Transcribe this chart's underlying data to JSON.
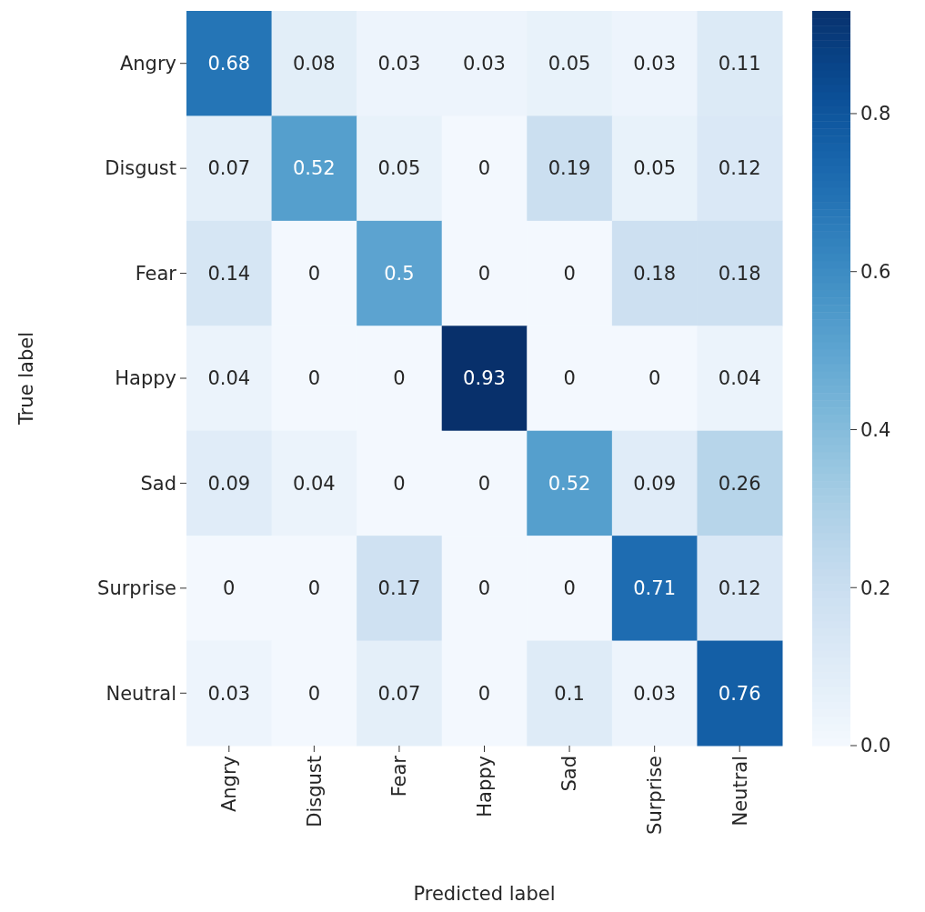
{
  "chart_data": {
    "type": "heatmap",
    "xlabel": "Predicted label",
    "ylabel": "True label",
    "categories": [
      "Angry",
      "Disgust",
      "Fear",
      "Happy",
      "Sad",
      "Surprise",
      "Neutral"
    ],
    "y_categories": [
      "Angry",
      "Disgust",
      "Fear",
      "Happy",
      "Sad",
      "Surprise",
      "Neutral"
    ],
    "cells": [
      [
        0.68,
        0.08,
        0.03,
        0.03,
        0.05,
        0.03,
        0.11
      ],
      [
        0.07,
        0.52,
        0.05,
        0,
        0.19,
        0.05,
        0.12
      ],
      [
        0.14,
        0,
        0.5,
        0,
        0,
        0.18,
        0.18
      ],
      [
        0.04,
        0,
        0,
        0.93,
        0,
        0,
        0.04
      ],
      [
        0.09,
        0.04,
        0,
        0,
        0.52,
        0.09,
        0.26
      ],
      [
        0,
        0,
        0.17,
        0,
        0,
        0.71,
        0.12
      ],
      [
        0.03,
        0,
        0.07,
        0,
        0.1,
        0.03,
        0.76
      ]
    ],
    "data_labels": true,
    "clim": [
      0,
      0.93
    ],
    "cticks": [
      {
        "value": 0,
        "label": "0.0"
      },
      0.2,
      0.4,
      0.6,
      0.8
    ]
  }
}
